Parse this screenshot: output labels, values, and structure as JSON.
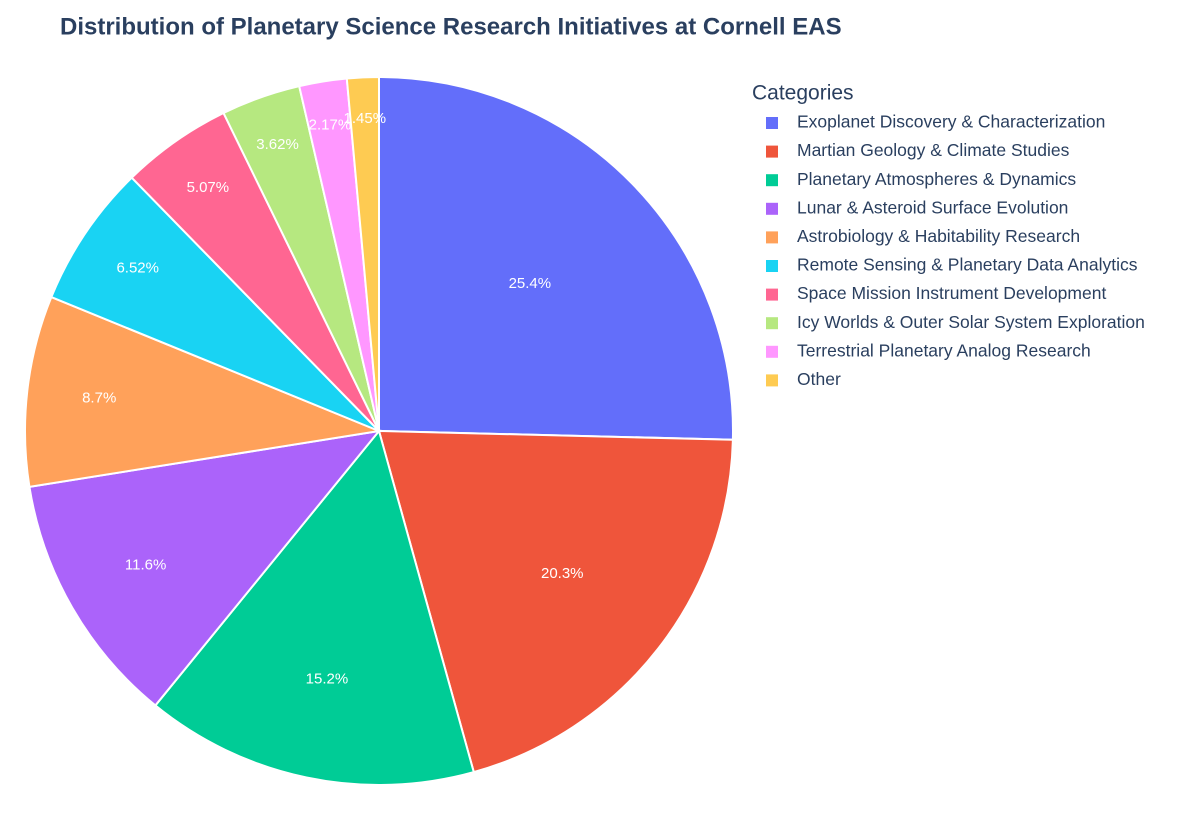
{
  "chart_data": {
    "type": "pie",
    "title": "Distribution of Planetary Science Research Initiatives at Cornell EAS",
    "legend_title": "Categories",
    "categories": [
      "Exoplanet Discovery & Characterization",
      "Martian Geology & Climate Studies",
      "Planetary Atmospheres & Dynamics",
      "Lunar & Asteroid Surface Evolution",
      "Astrobiology & Habitability Research",
      "Remote Sensing & Planetary Data Analytics",
      "Space Mission Instrument Development",
      "Icy Worlds & Outer Solar System Exploration",
      "Terrestrial Planetary Analog Research",
      "Other"
    ],
    "values": [
      25.4,
      20.3,
      15.2,
      11.6,
      8.7,
      6.52,
      5.07,
      3.62,
      2.17,
      1.45
    ],
    "value_labels": [
      "25.4%",
      "20.3%",
      "15.2%",
      "11.6%",
      "8.7%",
      "6.52%",
      "5.07%",
      "3.62%",
      "2.17%",
      "1.45%"
    ],
    "colors": [
      "#636efa",
      "#EF553B",
      "#00cc96",
      "#ab63fa",
      "#FFA15A",
      "#19d3f3",
      "#FF6692",
      "#B6E880",
      "#FF97FF",
      "#FECB52"
    ],
    "legend_position": "right"
  }
}
